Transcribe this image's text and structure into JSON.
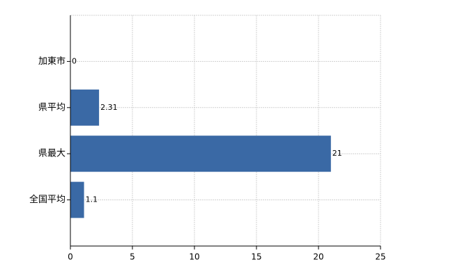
{
  "chart_data": {
    "type": "hbar",
    "categories": [
      "加東市",
      "県平均",
      "県最大",
      "全国平均"
    ],
    "values": [
      0,
      2.31,
      21,
      1.1
    ],
    "color": "#3a69a5",
    "xlim": [
      0,
      25
    ],
    "xticks": [
      0,
      5,
      10,
      15,
      20,
      25
    ],
    "grid": true
  }
}
